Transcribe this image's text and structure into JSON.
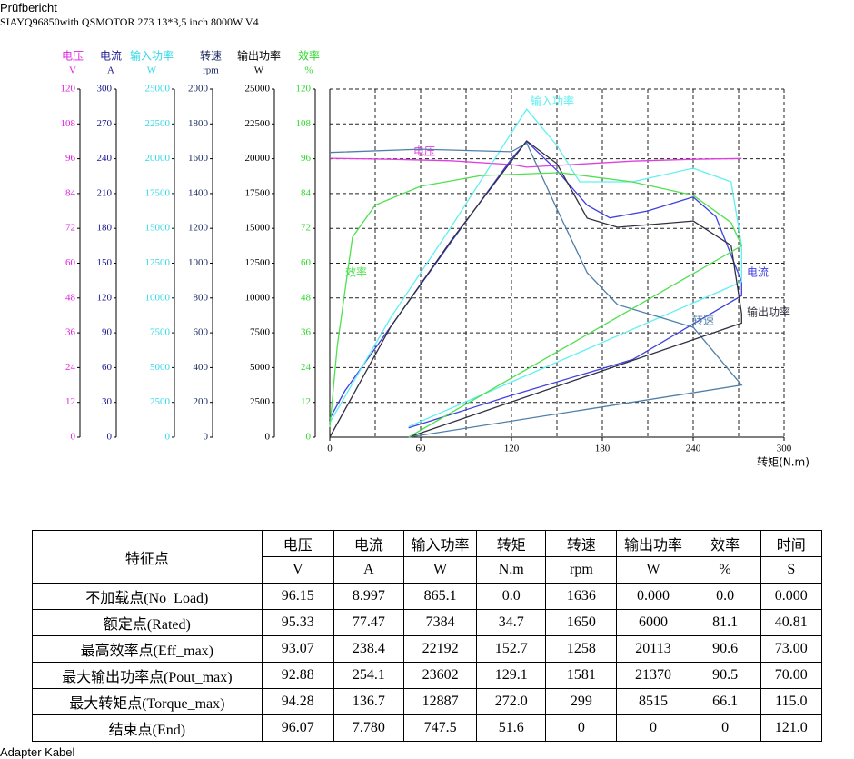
{
  "header": {
    "title": "Prüfbericht",
    "subtitle": "SIAYQ96850with QSMOTOR 273 13*3,5 inch 8000W V4"
  },
  "chart_data": {
    "type": "line",
    "xlabel": "转矩(N.m)",
    "xlim": [
      0,
      300
    ],
    "xticks": [
      0,
      60,
      120,
      180,
      240,
      300
    ],
    "grid": true,
    "axes": [
      {
        "label": "电压",
        "unit": "V",
        "color": "#e020e0",
        "ylim": [
          0,
          120
        ],
        "yticks": [
          0,
          12,
          24,
          36,
          48,
          60,
          72,
          84,
          96,
          108,
          120
        ]
      },
      {
        "label": "电流",
        "unit": "A",
        "color": "#1a1a90",
        "ylim": [
          0,
          300
        ],
        "yticks": [
          0,
          30,
          60,
          90,
          120,
          150,
          180,
          210,
          240,
          270,
          300
        ]
      },
      {
        "label": "输入功率",
        "unit": "W",
        "color": "#30d8e8",
        "ylim": [
          0,
          25000
        ],
        "yticks": [
          0,
          2500,
          5000,
          7500,
          10000,
          12500,
          15000,
          17500,
          20000,
          22500,
          25000
        ]
      },
      {
        "label": "转速",
        "unit": "rpm",
        "color": "#1a2a60",
        "ylim": [
          0,
          2000
        ],
        "yticks": [
          0,
          200,
          400,
          600,
          800,
          1000,
          1200,
          1400,
          1600,
          1800,
          2000
        ]
      },
      {
        "label": "输出功率",
        "unit": "W",
        "color": "#000000",
        "ylim": [
          0,
          25000
        ],
        "yticks": [
          0,
          2500,
          5000,
          7500,
          10000,
          12500,
          15000,
          17500,
          20000,
          22500,
          25000
        ]
      },
      {
        "label": "效率",
        "unit": "%",
        "color": "#30d830",
        "ylim": [
          0,
          120
        ],
        "yticks": [
          0,
          12,
          24,
          36,
          48,
          60,
          72,
          84,
          96,
          108,
          120
        ]
      }
    ],
    "series": [
      {
        "name": "电压",
        "color": "#e040e0",
        "axis": 0,
        "x": [
          0,
          40,
          80,
          120,
          130,
          160,
          200,
          240,
          272
        ],
        "values": [
          96.15,
          95.8,
          95.3,
          94,
          93.1,
          94,
          95.2,
          95.8,
          96.1
        ]
      },
      {
        "name": "电流",
        "color": "#4040e0",
        "axis": 1,
        "x": [
          0,
          10,
          40,
          80,
          120,
          130,
          150,
          170,
          185,
          210,
          240,
          255,
          272,
          272,
          200,
          120,
          52
        ],
        "values": [
          16,
          40,
          95,
          168,
          240,
          255,
          230,
          200,
          189,
          195,
          207,
          190,
          134,
          122,
          67,
          36,
          8
        ]
      },
      {
        "name": "输入功率",
        "color": "#60f0f0",
        "axis": 2,
        "x": [
          0,
          40,
          80,
          130,
          150,
          165,
          200,
          240,
          265,
          272,
          272,
          52
        ],
        "values": [
          1044,
          8550,
          15080,
          23560,
          20950,
          18340,
          18340,
          19320,
          18340,
          13770,
          11160,
          750
        ]
      },
      {
        "name": "转速",
        "color": "#4f7fa8",
        "axis": 3,
        "x": [
          0,
          60,
          120,
          130,
          150,
          170,
          190,
          220,
          240,
          272,
          52
        ],
        "values": [
          1636,
          1655,
          1640,
          1690,
          1311,
          945,
          762,
          684,
          632,
          299,
          0
        ]
      },
      {
        "name": "输出功率",
        "color": "#303040",
        "axis": 4,
        "x": [
          0,
          40,
          80,
          130,
          150,
          170,
          190,
          240,
          265,
          272,
          272,
          52
        ],
        "values": [
          0,
          7900,
          14100,
          21280,
          19650,
          15730,
          15080,
          15530,
          13770,
          8880,
          8200,
          0
        ]
      },
      {
        "name": "效率",
        "color": "#50e050",
        "axis": 5,
        "x": [
          0,
          5,
          15,
          30,
          60,
          100,
          152,
          200,
          240,
          265,
          272,
          52
        ],
        "values": [
          3.4,
          31.6,
          69,
          80,
          86.5,
          90.2,
          91.2,
          88,
          83.4,
          74,
          66,
          0
        ]
      }
    ]
  },
  "table": {
    "header": [
      "特征点",
      "电压",
      "电流",
      "输入功率",
      "转矩",
      "转速",
      "输出功率",
      "效率",
      "时间"
    ],
    "units": [
      "V",
      "A",
      "W",
      "N.m",
      "rpm",
      "W",
      "%",
      "S"
    ],
    "rows": [
      [
        "不加载点(No_Load)",
        "96.15",
        "8.997",
        "865.1",
        "0.0",
        "1636",
        "0.000",
        "0.0",
        "0.000"
      ],
      [
        "额定点(Rated)",
        "95.33",
        "77.47",
        "7384",
        "34.7",
        "1650",
        "6000",
        "81.1",
        "40.81"
      ],
      [
        "最高效率点(Eff_max)",
        "93.07",
        "238.4",
        "22192",
        "152.7",
        "1258",
        "20113",
        "90.6",
        "73.00"
      ],
      [
        "最大输出功率点(Pout_max)",
        "92.88",
        "254.1",
        "23602",
        "129.1",
        "1581",
        "21370",
        "90.5",
        "70.00"
      ],
      [
        "最大转矩点(Torque_max)",
        "94.28",
        "136.7",
        "12887",
        "272.0",
        "299",
        "8515",
        "66.1",
        "115.0"
      ],
      [
        "结束点(End)",
        "96.07",
        "7.780",
        "747.5",
        "51.6",
        "0",
        "0",
        "0",
        "121.0"
      ]
    ]
  },
  "footer": "Adapter Kabel"
}
